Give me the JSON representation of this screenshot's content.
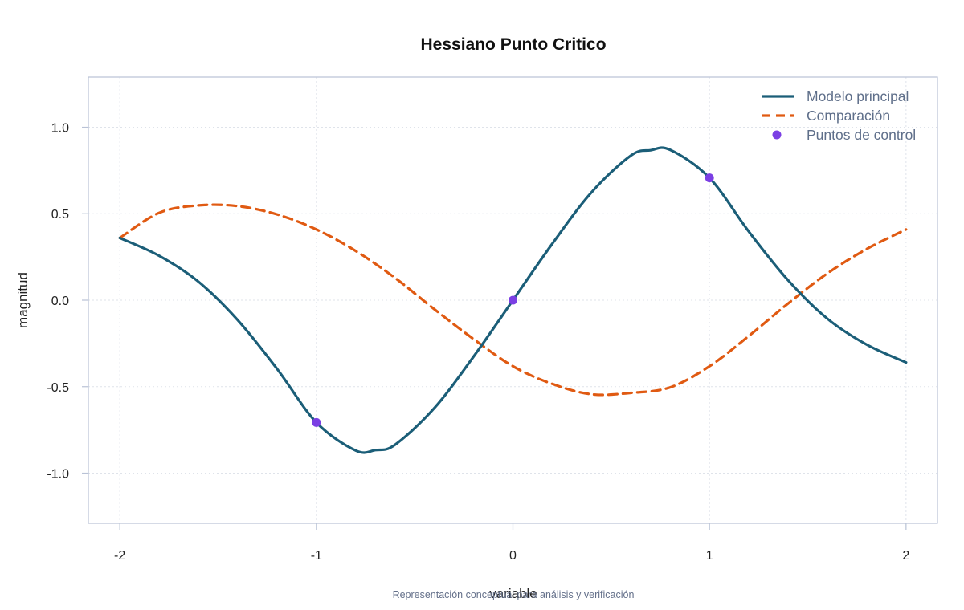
{
  "chart_data": {
    "type": "line",
    "title": "Hessiano Punto Critico",
    "xlabel": "variable",
    "ylabel": "magnitud",
    "caption": "Representación conceptual para análisis y verificación",
    "xlim": [
      -2.16,
      2.16
    ],
    "ylim": [
      -1.29,
      1.29
    ],
    "x_ticks": [
      -2,
      -1,
      0,
      1,
      2
    ],
    "x_tick_labels": [
      "-2",
      "-1",
      "0",
      "1",
      "2"
    ],
    "y_ticks": [
      -1.0,
      -0.5,
      0.0,
      0.5,
      1.0
    ],
    "y_tick_labels": [
      "-1.0",
      "-0.5",
      "0.0",
      "0.5",
      "1.0"
    ],
    "grid": true,
    "legend_position": "top-right",
    "series": [
      {
        "name": "Modelo principal",
        "kind": "line",
        "color": "#1b5e78",
        "style": "solid",
        "x": [
          -2.0,
          -1.8,
          -1.6,
          -1.4,
          -1.2,
          -1.0,
          -0.8,
          -0.7,
          -0.6,
          -0.4,
          -0.2,
          0.0,
          0.2,
          0.4,
          0.6,
          0.7,
          0.8,
          1.0,
          1.2,
          1.4,
          1.6,
          1.8,
          2.0
        ],
        "y": [
          0.36,
          0.257,
          0.107,
          -0.115,
          -0.397,
          -0.707,
          -0.869,
          -0.867,
          -0.836,
          -0.624,
          -0.326,
          0.0,
          0.326,
          0.624,
          0.836,
          0.867,
          0.869,
          0.707,
          0.397,
          0.115,
          -0.107,
          -0.257,
          -0.36
        ]
      },
      {
        "name": "Comparación",
        "kind": "line",
        "color": "#e05a12",
        "style": "dashed",
        "x": [
          -2.0,
          -1.8,
          -1.6,
          -1.4,
          -1.2,
          -1.0,
          -0.8,
          -0.6,
          -0.4,
          -0.2,
          0.0,
          0.2,
          0.4,
          0.6,
          0.8,
          1.0,
          1.2,
          1.4,
          1.6,
          1.8,
          2.0
        ],
        "y": [
          0.36,
          0.505,
          0.548,
          0.544,
          0.496,
          0.409,
          0.285,
          0.129,
          -0.052,
          -0.225,
          -0.382,
          -0.484,
          -0.544,
          -0.536,
          -0.504,
          -0.382,
          -0.207,
          -0.019,
          0.155,
          0.296,
          0.409
        ]
      },
      {
        "name": "Puntos de control",
        "kind": "scatter",
        "color": "#7b3fe4",
        "x": [
          -1,
          0,
          1
        ],
        "y": [
          -0.707,
          0.0,
          0.707
        ]
      }
    ]
  }
}
